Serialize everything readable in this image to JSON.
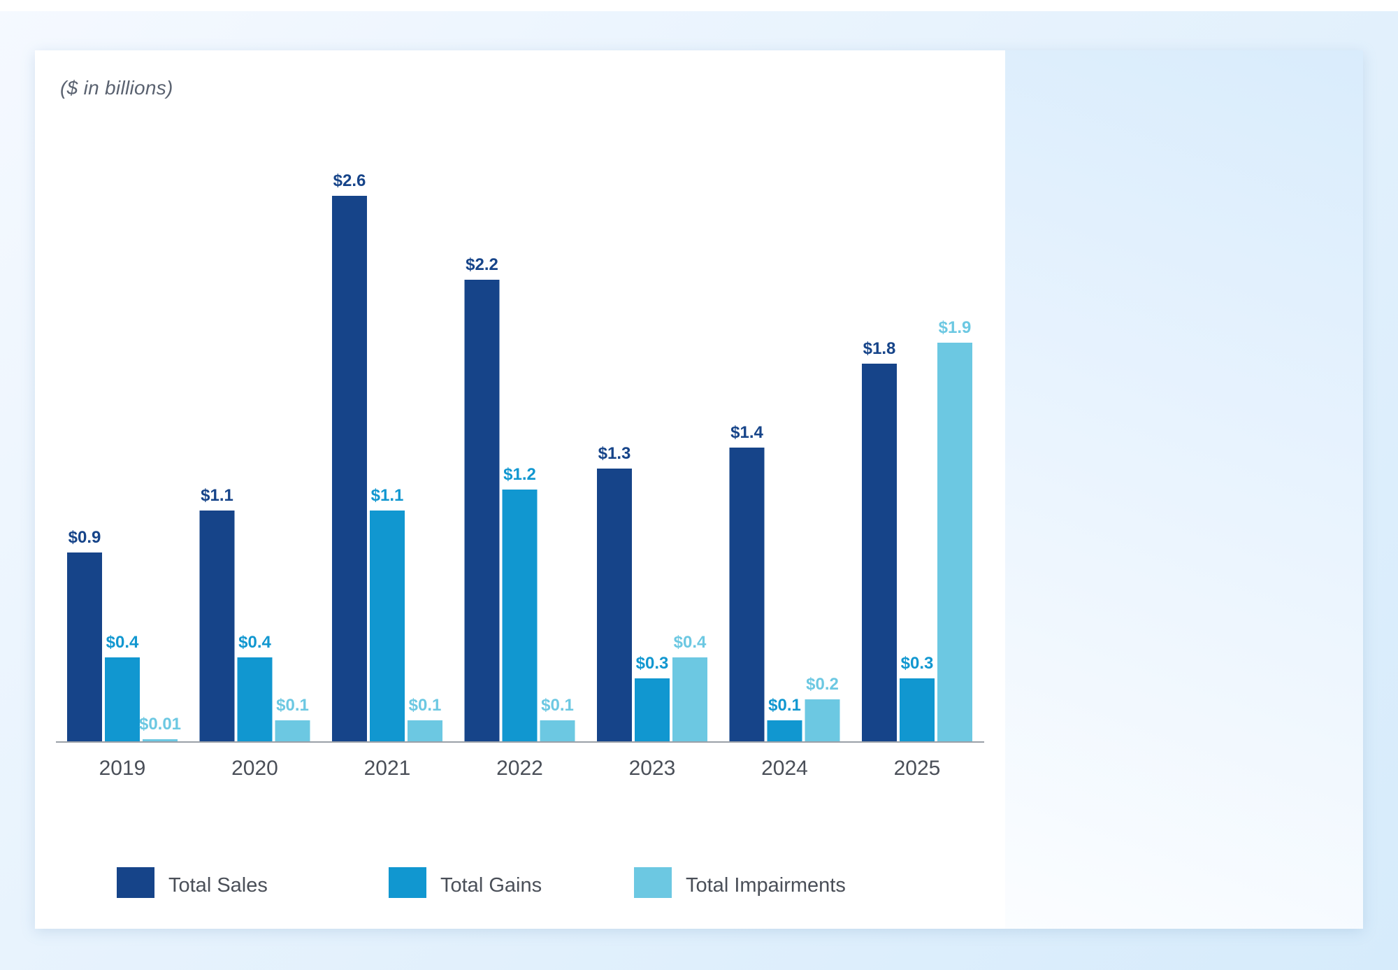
{
  "chart_data": {
    "type": "bar",
    "title": "",
    "subtitle": "($ in billions)",
    "xlabel": "",
    "ylabel": "",
    "ylim": [
      0,
      2.6
    ],
    "grid": false,
    "legend_position": "bottom",
    "categories": [
      "2019",
      "2020",
      "2021",
      "2022",
      "2023",
      "2024",
      "2025"
    ],
    "series": [
      {
        "name": "Total Sales",
        "color": "#164489",
        "values": [
          0.9,
          1.1,
          2.6,
          2.2,
          1.3,
          1.4,
          1.8
        ],
        "labels": [
          "$0.9",
          "$1.1",
          "$2.6",
          "$2.2",
          "$1.3",
          "$1.4",
          "$1.8"
        ]
      },
      {
        "name": "Total Gains",
        "color": "#1197d0",
        "values": [
          0.4,
          0.4,
          1.1,
          1.2,
          0.3,
          0.1,
          0.3
        ],
        "labels": [
          "$0.4",
          "$0.4",
          "$1.1",
          "$1.2",
          "$0.3",
          "$0.1",
          "$0.3"
        ]
      },
      {
        "name": "Total Impairments",
        "color": "#6cc8e2",
        "values": [
          0.01,
          0.1,
          0.1,
          0.1,
          0.4,
          0.2,
          1.9
        ],
        "labels": [
          "$0.01",
          "$0.1",
          "$0.1",
          "$0.1",
          "$0.4",
          "$0.2",
          "$1.9"
        ]
      }
    ]
  },
  "colors": {
    "axis": "#9aa0a8",
    "year_text": "#4a4f58"
  }
}
